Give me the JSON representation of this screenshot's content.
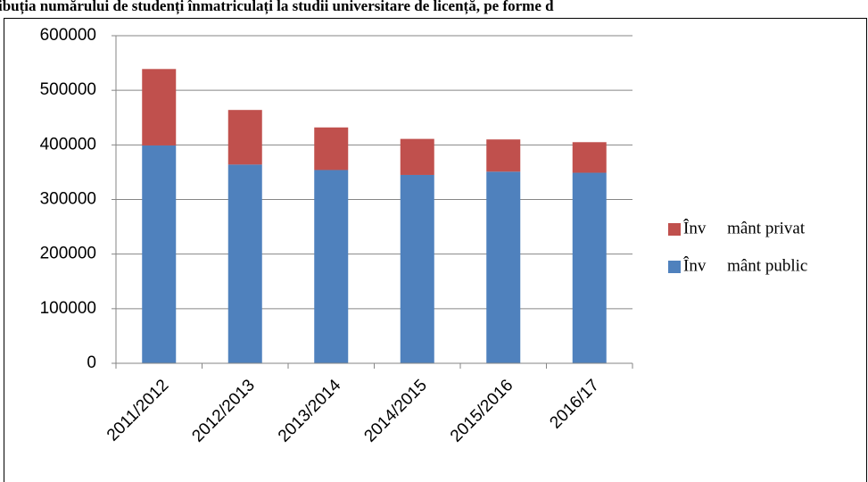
{
  "chart_data": {
    "type": "stacked_bar",
    "title": "ibuția numărului de studenți înmatriculați la studii universitare de licență, pe forme d",
    "categories": [
      "2011/2012",
      "2012/2013",
      "2013/2014",
      "2014/2015",
      "2015/2016",
      "2016/17"
    ],
    "series": [
      {
        "name": "Înv     mânt public",
        "color": "#4f81bd",
        "values": [
          399000,
          364000,
          354000,
          345000,
          351000,
          349000
        ]
      },
      {
        "name": "Înv     mânt privat",
        "color": "#c0504d",
        "values": [
          140000,
          100000,
          78000,
          66000,
          59000,
          56000
        ]
      }
    ],
    "ylim": [
      0,
      600000
    ],
    "yticks": [
      0,
      100000,
      200000,
      300000,
      400000,
      500000,
      600000
    ],
    "grid": true,
    "legend": "right"
  }
}
